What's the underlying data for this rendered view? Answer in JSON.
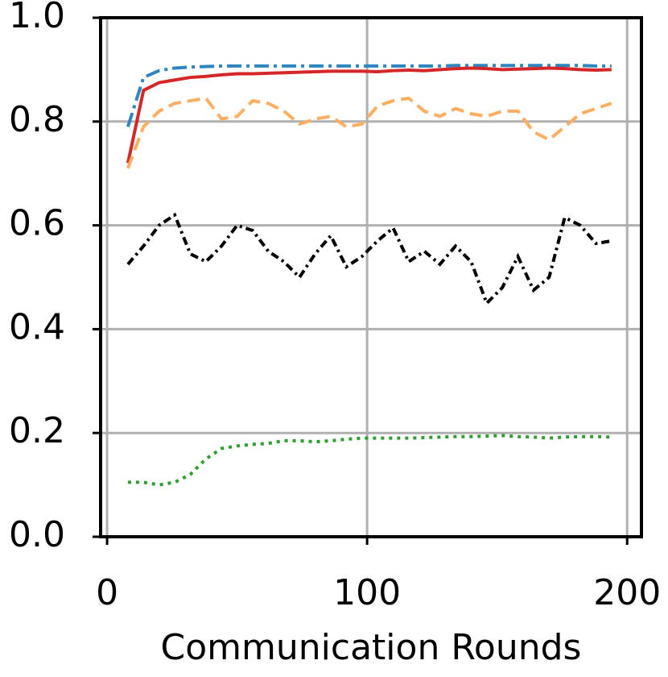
{
  "chart_data": {
    "type": "line",
    "x_label": "Communication Rounds",
    "x": [
      8,
      14,
      20,
      26,
      32,
      38,
      44,
      50,
      56,
      62,
      68,
      74,
      80,
      86,
      92,
      98,
      104,
      110,
      116,
      122,
      128,
      134,
      140,
      146,
      152,
      158,
      164,
      170,
      176,
      182,
      188,
      194
    ],
    "series": [
      {
        "color": "#2e86c1",
        "style": "dashdot",
        "values": [
          0.79,
          0.885,
          0.898,
          0.903,
          0.905,
          0.906,
          0.907,
          0.907,
          0.907,
          0.907,
          0.907,
          0.907,
          0.907,
          0.907,
          0.907,
          0.907,
          0.907,
          0.907,
          0.907,
          0.907,
          0.907,
          0.908,
          0.908,
          0.908,
          0.908,
          0.908,
          0.908,
          0.908,
          0.908,
          0.908,
          0.907,
          0.907
        ]
      },
      {
        "color": "#d62728",
        "style": "solid",
        "values": [
          0.72,
          0.86,
          0.875,
          0.88,
          0.885,
          0.887,
          0.89,
          0.892,
          0.892,
          0.893,
          0.894,
          0.895,
          0.896,
          0.897,
          0.897,
          0.897,
          0.896,
          0.898,
          0.899,
          0.898,
          0.9,
          0.902,
          0.903,
          0.902,
          0.9,
          0.901,
          0.902,
          0.903,
          0.902,
          0.9,
          0.899,
          0.9
        ]
      },
      {
        "color": "#fdae61",
        "style": "dashed",
        "values": [
          0.71,
          0.79,
          0.82,
          0.835,
          0.84,
          0.845,
          0.805,
          0.81,
          0.84,
          0.835,
          0.82,
          0.795,
          0.805,
          0.81,
          0.79,
          0.795,
          0.83,
          0.84,
          0.845,
          0.82,
          0.81,
          0.825,
          0.815,
          0.81,
          0.82,
          0.82,
          0.78,
          0.765,
          0.79,
          0.815,
          0.825,
          0.835
        ]
      },
      {
        "color": "#000000",
        "style": "densedashdot",
        "values": [
          0.525,
          0.56,
          0.6,
          0.62,
          0.545,
          0.53,
          0.56,
          0.6,
          0.59,
          0.55,
          0.53,
          0.5,
          0.545,
          0.58,
          0.52,
          0.54,
          0.57,
          0.595,
          0.53,
          0.55,
          0.525,
          0.56,
          0.53,
          0.45,
          0.48,
          0.54,
          0.475,
          0.5,
          0.615,
          0.6,
          0.565,
          0.57
        ]
      },
      {
        "color": "#2ca02c",
        "style": "dotted",
        "values": [
          0.105,
          0.105,
          0.1,
          0.105,
          0.12,
          0.15,
          0.17,
          0.175,
          0.178,
          0.18,
          0.185,
          0.185,
          0.183,
          0.185,
          0.188,
          0.19,
          0.19,
          0.19,
          0.19,
          0.191,
          0.192,
          0.193,
          0.193,
          0.194,
          0.195,
          0.193,
          0.192,
          0.19,
          0.192,
          0.193,
          0.193,
          0.192
        ]
      }
    ],
    "xlim": [
      -2.5,
      205.5
    ],
    "xticks": [
      0,
      100,
      200
    ],
    "ylim": [
      0,
      1
    ],
    "yticks": [
      {
        "value": 0,
        "label": "0.0"
      },
      0.2,
      0.4,
      0.6,
      0.8,
      {
        "value": 1,
        "label": "1.0"
      }
    ],
    "grid": true
  }
}
